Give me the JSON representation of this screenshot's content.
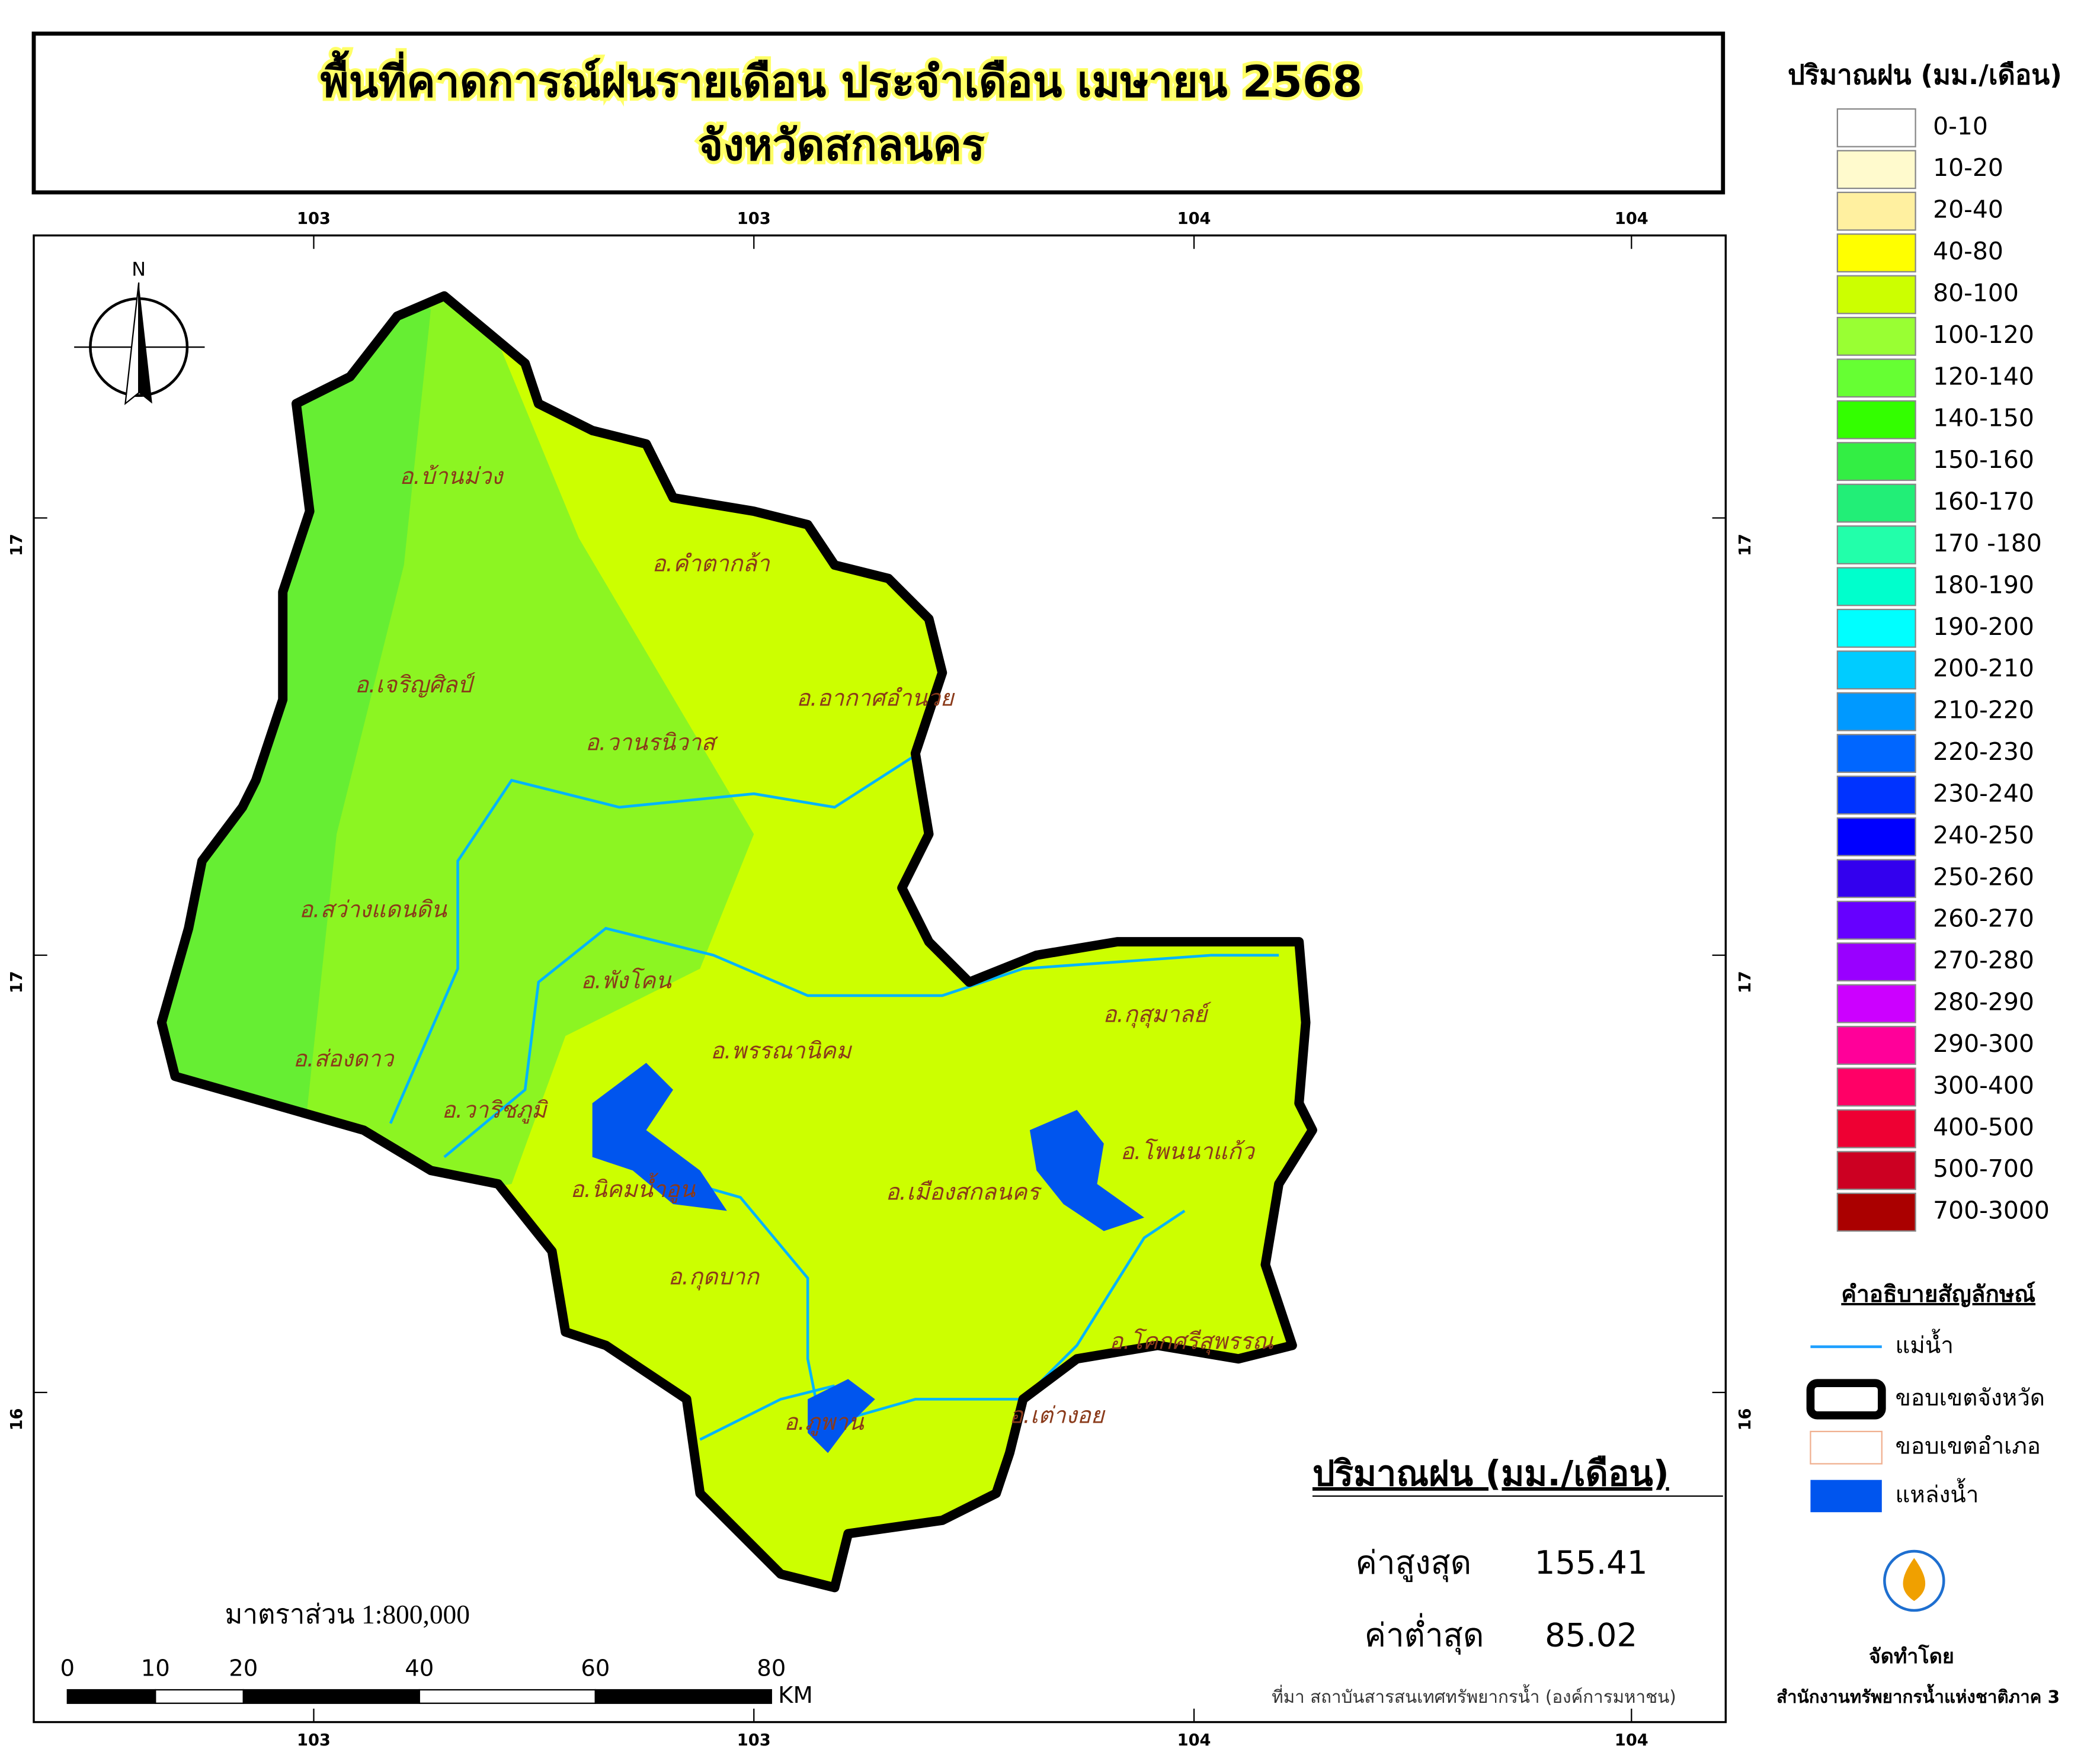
{
  "header": {
    "title_line1": "พื้นที่คาดการณ์ฝนรายเดือน ประจำเดือน เมษายน 2568",
    "title_line2": "จังหวัดสกลนคร"
  },
  "grid_labels": {
    "top": [
      103,
      103,
      104,
      104
    ],
    "bottom": [
      103,
      103,
      104,
      104
    ],
    "left": [
      17,
      17,
      16
    ],
    "right": [
      17,
      17,
      16
    ]
  },
  "north": "N",
  "districts": [
    "อ.บ้านม่วง",
    "อ.คำตากล้า",
    "อ.เจริญศิลป์",
    "อ.อากาศอำนวย",
    "อ.วานรนิวาส",
    "อ.สว่างแดนดิน",
    "อ.พังโคน",
    "อ.กุสุมาลย์",
    "อ.ส่องดาว",
    "อ.พรรณานิคม",
    "อ.วาริชภูมิ",
    "อ.โพนนาแก้ว",
    "อ.นิคมน้ำอูน",
    "อ.เมืองสกลนคร",
    "อ.กุดบาก",
    "อ.โคกศรีสุพรรณ",
    "อ.ภูพาน",
    "อ.เต่างอย"
  ],
  "rain_legend": {
    "title": "ปริมาณฝน (มม./เดือน)",
    "items": [
      {
        "label": "0-10",
        "color": "#ffffff"
      },
      {
        "label": "10-20",
        "color": "#fffacd"
      },
      {
        "label": "20-40",
        "color": "#fff0a0"
      },
      {
        "label": "40-80",
        "color": "#ffff00"
      },
      {
        "label": "80-100",
        "color": "#ccff00"
      },
      {
        "label": "100-120",
        "color": "#99ff33"
      },
      {
        "label": "120-140",
        "color": "#66ff33"
      },
      {
        "label": "140-150",
        "color": "#33ff00"
      },
      {
        "label": "150-160",
        "color": "#33ee44"
      },
      {
        "label": "160-170",
        "color": "#22ee77"
      },
      {
        "label": "170 -180",
        "color": "#22ffaa"
      },
      {
        "label": "180-190",
        "color": "#00ffcc"
      },
      {
        "label": "190-200",
        "color": "#00ffff"
      },
      {
        "label": "200-210",
        "color": "#00ccff"
      },
      {
        "label": "210-220",
        "color": "#0099ff"
      },
      {
        "label": "220-230",
        "color": "#0066ff"
      },
      {
        "label": "230-240",
        "color": "#0033ff"
      },
      {
        "label": "240-250",
        "color": "#0000ff"
      },
      {
        "label": "250-260",
        "color": "#3300ee"
      },
      {
        "label": "260-270",
        "color": "#6600ff"
      },
      {
        "label": "270-280",
        "color": "#9900ff"
      },
      {
        "label": "280-290",
        "color": "#cc00ff"
      },
      {
        "label": "290-300",
        "color": "#ff0099"
      },
      {
        "label": "300-400",
        "color": "#ff0066"
      },
      {
        "label": "400-500",
        "color": "#ee0033"
      },
      {
        "label": "500-700",
        "color": "#cc0022"
      },
      {
        "label": "700-3000",
        "color": "#aa0000"
      }
    ]
  },
  "symbol_legend": {
    "title": "คำอธิบายสัญลักษณ์",
    "items": [
      "แม่น้ำ",
      "ขอบเขตจังหวัด",
      "ขอบเขตอำเภอ",
      "แหล่งน้ำ"
    ]
  },
  "stats": {
    "title": "ปริมาณฝน (มม./เดือน)",
    "max_label": "ค่าสูงสุด",
    "max_value": 155.41,
    "min_label": "ค่าต่ำสุด",
    "min_value": 85.02
  },
  "scale": {
    "text": "มาตราส่วน 1:800,000",
    "ticks": [
      0,
      10,
      20,
      40,
      60,
      80
    ],
    "unit": "KM"
  },
  "footer": {
    "source": "ที่มา  สถาบันสารสนเทศทรัพยากรน้ำ (องค์การมหาชน)",
    "made_by": "จัดทำโดย",
    "agency": "สำนักงานทรัพยากรน้ำแห่งชาติภาค 3"
  }
}
